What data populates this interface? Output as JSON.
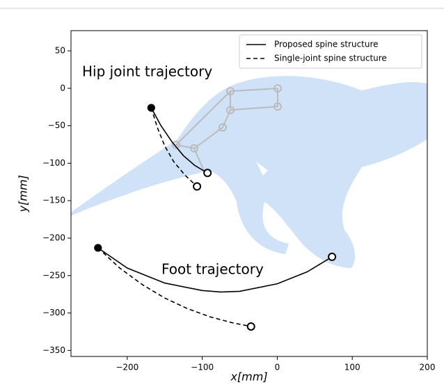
{
  "chart_data": {
    "type": "line",
    "annotations": [
      "Hip joint trajectory",
      "Foot trajectory"
    ],
    "x_label": "x[mm]",
    "y_label": "y[mm]",
    "xlim": [
      -275,
      200
    ],
    "ylim": [
      -358,
      77
    ],
    "xticks": [
      {
        "value": -200,
        "label": "−200"
      },
      {
        "value": -100,
        "label": "−100"
      },
      0,
      100,
      200
    ],
    "yticks": [
      50,
      0,
      {
        "value": -50,
        "label": "−50"
      },
      {
        "value": -100,
        "label": "−100"
      },
      {
        "value": -150,
        "label": "−150"
      },
      {
        "value": -200,
        "label": "−200"
      },
      {
        "value": -250,
        "label": "−250"
      },
      {
        "value": -300,
        "label": "−300"
      },
      {
        "value": -350,
        "label": "−350"
      }
    ],
    "legend": "upper right",
    "series": [
      {
        "name": "Proposed spine structure",
        "color": "#000000",
        "linestyle": "solid",
        "x": [
          -168,
          -155,
          -140,
          -125,
          -110,
          -93,
          null,
          -239,
          -200,
          -150,
          -100,
          -75,
          -50,
          0,
          40,
          73
        ],
        "values": [
          -26,
          -50,
          -72,
          -90,
          -103,
          -113,
          null,
          -213,
          -240,
          -260,
          -270,
          -272,
          -271,
          -261,
          -245,
          -225
        ]
      },
      {
        "name": "Single-joint spine structure",
        "color": "#000000",
        "linestyle": "dashed",
        "x": [
          -168,
          -160,
          -150,
          -138,
          -123,
          -107,
          null,
          -239,
          -210,
          -180,
          -150,
          -120,
          -90,
          -60,
          -35
        ],
        "values": [
          -26,
          -52,
          -77,
          -98,
          -116,
          -131,
          null,
          -213,
          -240,
          -262,
          -280,
          -294,
          -305,
          -313,
          -318
        ]
      }
    ]
  }
}
